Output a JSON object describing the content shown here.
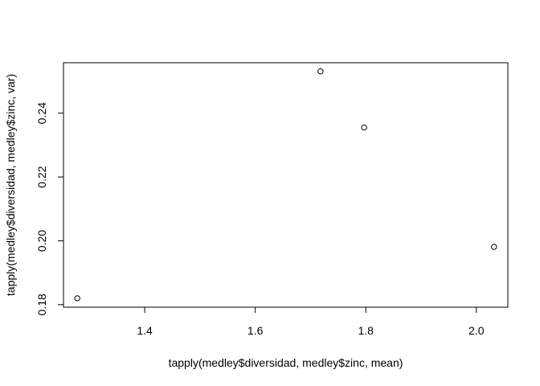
{
  "chart_data": {
    "type": "scatter",
    "title": "",
    "xlabel": "tapply(medley$diversidad, medley$zinc, mean)",
    "ylabel": "tapply(medley$diversidad, medley$zinc, var)",
    "xlim": [
      1.253,
      2.057
    ],
    "ylim": [
      0.1792,
      0.2558
    ],
    "xticks": [
      1.4,
      1.6,
      1.8,
      2.0
    ],
    "xtick_labels": [
      "1.4",
      "1.6",
      "1.8",
      "2.0"
    ],
    "yticks": [
      0.18,
      0.2,
      0.22,
      0.24
    ],
    "ytick_labels": [
      "0.18",
      "0.20",
      "0.22",
      "0.24"
    ],
    "grid": false,
    "legend": "none",
    "marker": "open-circle",
    "points": [
      {
        "x": 1.278,
        "y": 0.182
      },
      {
        "x": 1.718,
        "y": 0.2531
      },
      {
        "x": 1.797,
        "y": 0.2355
      },
      {
        "x": 2.032,
        "y": 0.1981
      }
    ]
  }
}
